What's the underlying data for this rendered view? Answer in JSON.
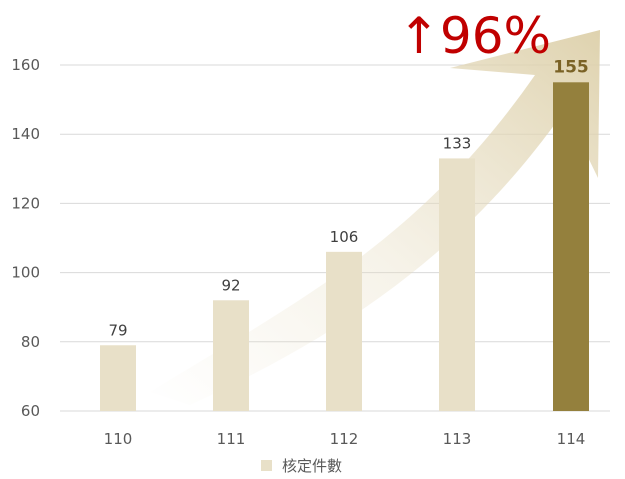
{
  "chart_data": {
    "type": "bar",
    "categories": [
      "110",
      "111",
      "112",
      "113",
      "114"
    ],
    "series": [
      {
        "name": "核定件數",
        "values": [
          79,
          92,
          106,
          133,
          155
        ]
      }
    ],
    "highlight_index": 4,
    "ylim": [
      60,
      160
    ],
    "yticks": [
      60,
      80,
      100,
      120,
      140,
      160
    ],
    "grid": true,
    "legend_position": "bottom",
    "annotation": "↑96%",
    "colors": {
      "bar": "#e8e0c8",
      "bar_highlight": "#94803d",
      "arrow": "#e6dcc0",
      "annotation": "#c00000",
      "grid": "#d9d9d9"
    }
  }
}
